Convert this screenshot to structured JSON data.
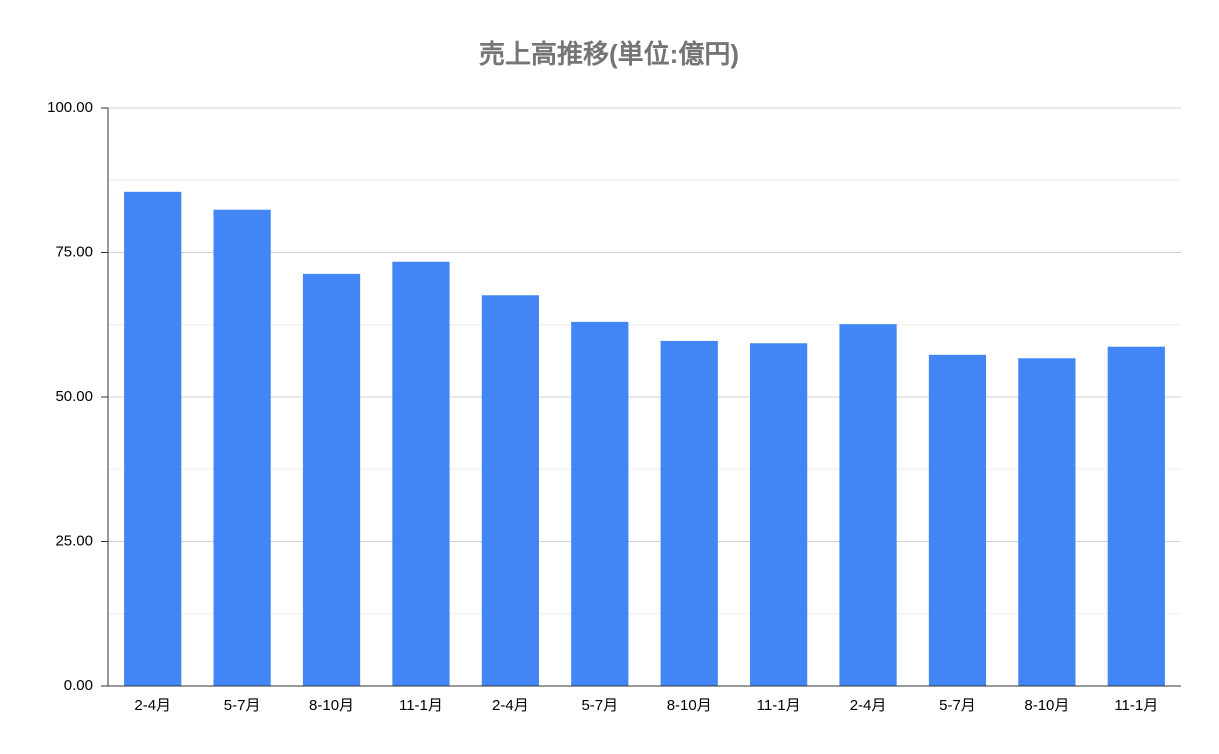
{
  "chart_data": {
    "type": "bar",
    "title": "売上高推移(単位:億円)",
    "categories": [
      "2-4月",
      "5-7月",
      "8-10月",
      "11-1月",
      "2-4月",
      "5-7月",
      "8-10月",
      "11-1月",
      "2-4月",
      "5-7月",
      "8-10月",
      "11-1月"
    ],
    "values": [
      85.5,
      82.4,
      71.3,
      73.4,
      67.6,
      63.0,
      59.7,
      59.3,
      62.6,
      57.3,
      56.7,
      58.7
    ],
    "color": "#4285f4",
    "ylim": [
      0,
      100
    ],
    "yticks": [
      {
        "value": 0,
        "label": "0.00"
      },
      {
        "value": 25,
        "label": "25.00"
      },
      {
        "value": 50,
        "label": "50.00"
      },
      {
        "value": 75,
        "label": "75.00"
      },
      {
        "value": 100,
        "label": "100.00"
      }
    ],
    "minor_yticks": [
      12.5,
      37.5,
      62.5,
      87.5
    ],
    "grid": true
  }
}
